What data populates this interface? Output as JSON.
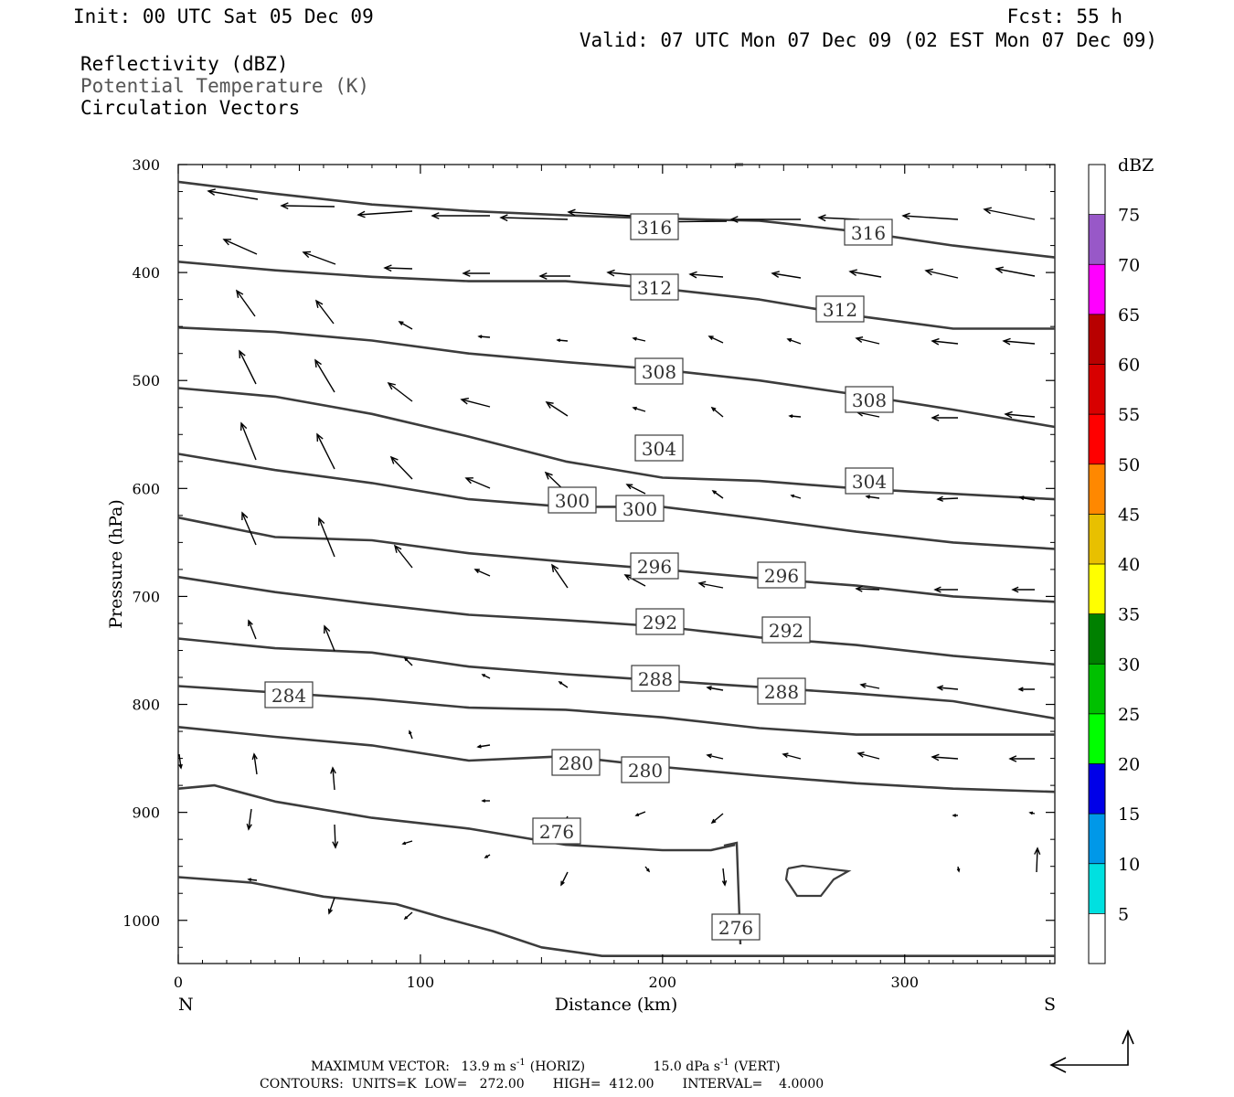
{
  "header": {
    "init": "Init: 00 UTC Sat 05 Dec 09",
    "fcst": "Fcst:   55 h",
    "valid": "Valid: 07 UTC Mon 07 Dec 09 (02 EST Mon 07 Dec 09)",
    "fields": [
      "Reflectivity (dBZ)",
      "Potential Temperature (K)",
      "Circulation Vectors"
    ]
  },
  "colorbar": {
    "unit": "dBZ",
    "levels": [
      "5",
      "10",
      "15",
      "20",
      "25",
      "30",
      "35",
      "40",
      "45",
      "50",
      "55",
      "60",
      "65",
      "70",
      "75"
    ],
    "colors": [
      "#ffffff",
      "#00e0e0",
      "#0098e8",
      "#0000e8",
      "#00ff00",
      "#00c000",
      "#008000",
      "#ffff00",
      "#e8c000",
      "#ff8800",
      "#ff0000",
      "#d80000",
      "#b80000",
      "#ff00ff",
      "#9858c8",
      "#ffffff"
    ]
  },
  "footer": {
    "maxvec_label": "MAXIMUM VECTOR:",
    "maxvec_horiz": "13.9 m s",
    "maxvec_horiz_unit": "(HORIZ)",
    "maxvec_vert": "15.0 dPa s",
    "maxvec_vert_unit": "(VERT)",
    "exp": "-1",
    "contours": "CONTOURS:  UNITS=K  LOW=   272.00       HIGH=  412.00       INTERVAL=    4.0000"
  },
  "chart_data": {
    "type": "line",
    "title": "",
    "xlabel": "Distance (km)",
    "ylabel": "Pressure (hPa)",
    "xlim": [
      0,
      362
    ],
    "ylim": [
      1040,
      300
    ],
    "x_ticks": [
      0,
      100,
      200,
      300
    ],
    "y_ticks": [
      300,
      400,
      500,
      600,
      700,
      800,
      900,
      1000
    ],
    "x_end_labels": {
      "left": "N",
      "right": "S"
    },
    "series": [
      {
        "theta": 316,
        "x": [
          0,
          40,
          80,
          120,
          160,
          200,
          240,
          280,
          320,
          362
        ],
        "y": [
          316,
          327,
          337,
          343,
          347,
          350,
          352,
          362,
          375,
          386
        ]
      },
      {
        "theta": 312,
        "x": [
          0,
          40,
          80,
          120,
          160,
          200,
          240,
          280,
          320,
          362
        ],
        "y": [
          390,
          398,
          404,
          408,
          408,
          415,
          425,
          440,
          452,
          452
        ]
      },
      {
        "theta": 308,
        "x": [
          0,
          40,
          80,
          120,
          160,
          200,
          240,
          280,
          320,
          362
        ],
        "y": [
          451,
          455,
          463,
          475,
          483,
          490,
          500,
          513,
          527,
          543
        ]
      },
      {
        "theta": 304,
        "x": [
          0,
          40,
          80,
          120,
          160,
          200,
          240,
          280,
          320,
          362
        ],
        "y": [
          507,
          515,
          531,
          552,
          575,
          590,
          593,
          600,
          605,
          610
        ]
      },
      {
        "theta": 300,
        "x": [
          0,
          40,
          80,
          120,
          160,
          200,
          240,
          280,
          320,
          362
        ],
        "y": [
          568,
          583,
          595,
          610,
          617,
          617,
          628,
          640,
          650,
          656
        ]
      },
      {
        "theta": 296,
        "x": [
          0,
          40,
          80,
          120,
          160,
          200,
          240,
          280,
          320,
          362
        ],
        "y": [
          627,
          645,
          648,
          660,
          668,
          675,
          683,
          690,
          700,
          705
        ]
      },
      {
        "theta": 292,
        "x": [
          0,
          40,
          80,
          120,
          160,
          200,
          240,
          280,
          320,
          362
        ],
        "y": [
          682,
          696,
          707,
          717,
          722,
          728,
          738,
          745,
          755,
          763
        ]
      },
      {
        "theta": 288,
        "x": [
          0,
          40,
          80,
          120,
          160,
          200,
          240,
          280,
          320,
          362
        ],
        "y": [
          739,
          748,
          752,
          765,
          772,
          778,
          784,
          790,
          797,
          813
        ]
      },
      {
        "theta": 284,
        "x": [
          0,
          40,
          80,
          120,
          160,
          200,
          240,
          280,
          320,
          362
        ],
        "y": [
          783,
          789,
          795,
          803,
          805,
          812,
          822,
          828,
          828,
          828
        ]
      },
      {
        "theta": 280,
        "x": [
          0,
          40,
          80,
          120,
          160,
          200,
          240,
          280,
          320,
          362
        ],
        "y": [
          821,
          830,
          838,
          852,
          848,
          858,
          866,
          873,
          878,
          881
        ]
      },
      {
        "theta": 276,
        "x": [
          0,
          15,
          40,
          80,
          120,
          160,
          200,
          220,
          230
        ],
        "y": [
          878,
          875,
          890,
          905,
          915,
          930,
          935,
          935,
          930
        ]
      },
      {
        "theta": 272,
        "x": [
          0,
          30,
          60,
          90,
          110,
          130,
          150,
          175,
          200,
          230,
          362
        ],
        "y": [
          960,
          965,
          978,
          985,
          998,
          1010,
          1025,
          1033,
          1033,
          1033,
          1033
        ]
      }
    ],
    "contour_labels": [
      "316",
      "316",
      "312",
      "312",
      "308",
      "308",
      "304",
      "304",
      "300",
      "300",
      "296",
      "296",
      "292",
      "292",
      "288",
      "288",
      "284",
      "280",
      "280",
      "276",
      "276"
    ]
  }
}
